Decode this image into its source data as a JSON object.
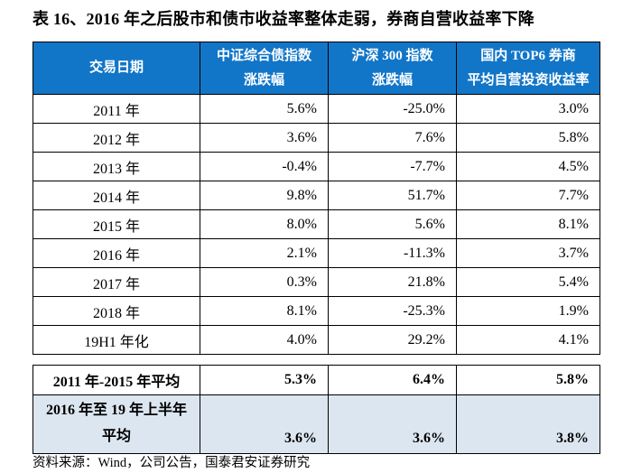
{
  "title": "表 16、2016 年之后股市和债市收益率整体走弱，券商自营收益率下降",
  "colors": {
    "header_bg": "#1276C8",
    "header_text": "#FFFFFF",
    "highlight_row_bg": "#DCE6F1",
    "border": "#000000"
  },
  "table": {
    "headers": [
      {
        "line1": "交易日期",
        "line2": ""
      },
      {
        "line1": "中证综合债指数",
        "line2": "涨跌幅"
      },
      {
        "line1": "沪深 300 指数",
        "line2": "涨跌幅"
      },
      {
        "line1": "国内 TOP6 券商",
        "line2": "平均自营投资收益率"
      }
    ],
    "rows": [
      {
        "label": "2011 年",
        "bond": "5.6%",
        "hs300": "-25.0%",
        "top6": "3.0%"
      },
      {
        "label": "2012 年",
        "bond": "3.6%",
        "hs300": "7.6%",
        "top6": "5.8%"
      },
      {
        "label": "2013 年",
        "bond": "-0.4%",
        "hs300": "-7.7%",
        "top6": "4.5%"
      },
      {
        "label": "2014 年",
        "bond": "9.8%",
        "hs300": "51.7%",
        "top6": "7.7%"
      },
      {
        "label": "2015 年",
        "bond": "8.0%",
        "hs300": "5.6%",
        "top6": "8.1%"
      },
      {
        "label": "2016 年",
        "bond": "2.1%",
        "hs300": "-11.3%",
        "top6": "3.7%"
      },
      {
        "label": "2017 年",
        "bond": "0.3%",
        "hs300": "21.8%",
        "top6": "5.4%"
      },
      {
        "label": "2018 年",
        "bond": "8.1%",
        "hs300": "-25.3%",
        "top6": "1.9%"
      },
      {
        "label": "19H1 年化",
        "bond": "4.0%",
        "hs300": "29.2%",
        "top6": "4.1%"
      }
    ],
    "summary": [
      {
        "label_line1": "2011 年-2015 年平均",
        "label_line2": "",
        "bond": "5.3%",
        "hs300": "6.4%",
        "top6": "5.8%"
      },
      {
        "label_line1": "2016 年至 19 年上半年",
        "label_line2": "平均",
        "bond": "3.6%",
        "hs300": "3.6%",
        "top6": "3.8%"
      }
    ]
  },
  "source": "资料来源：Wind，公司公告，国泰君安证券研究"
}
